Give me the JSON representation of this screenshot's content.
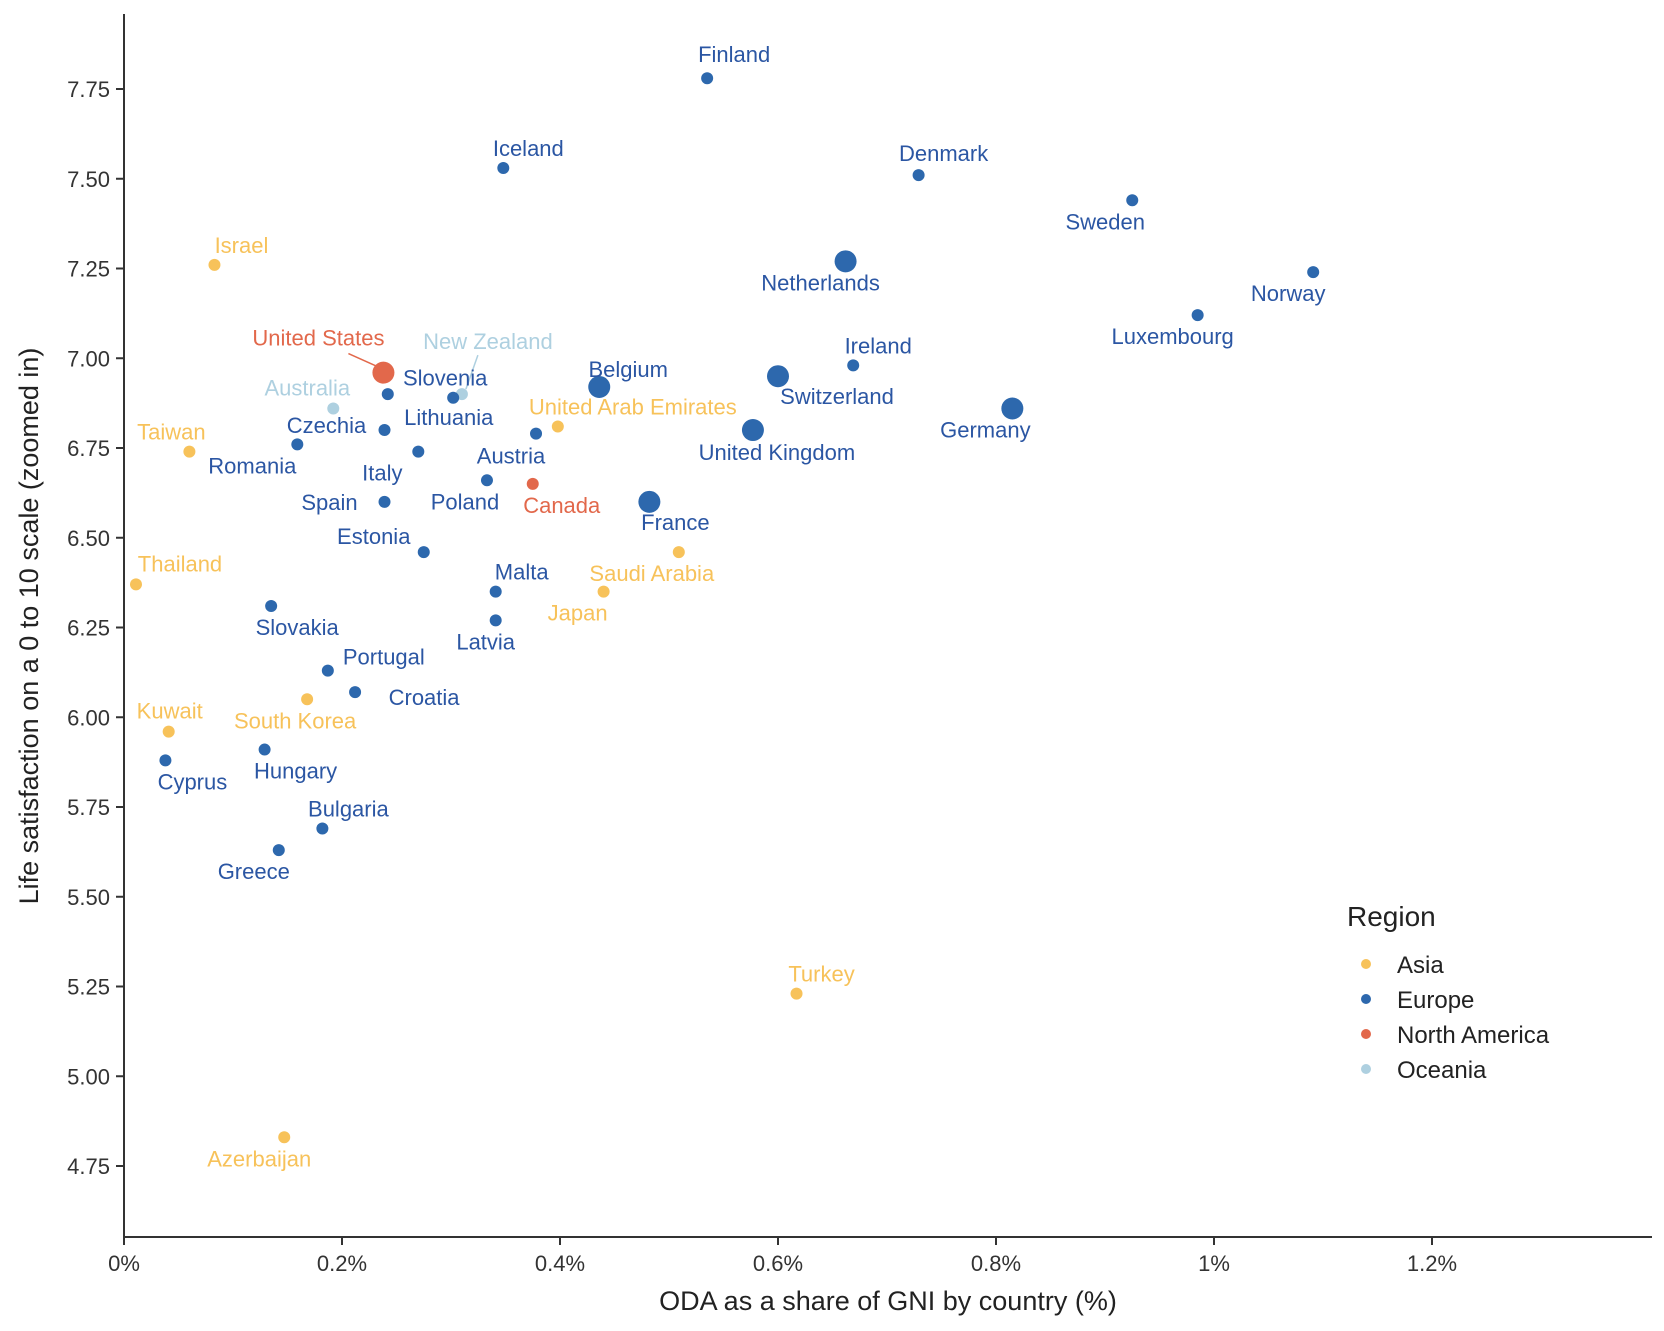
{
  "chart_data": {
    "type": "scatter",
    "xlabel": "ODA as a share of GNI by country (%)",
    "ylabel": "Life satisfaction on a 0 to 10 scale (zoomed in)",
    "xlim": [
      0,
      1.4
    ],
    "ylim": [
      4.6,
      7.92
    ],
    "x_ticks": [
      {
        "value": 0,
        "label": "0%"
      },
      {
        "value": 0.2,
        "label": "0.2%"
      },
      {
        "value": 0.4,
        "label": "0.4%"
      },
      {
        "value": 0.6,
        "label": "0.6%"
      },
      {
        "value": 0.8,
        "label": "0.8%"
      },
      {
        "value": 1.0,
        "label": "1%"
      },
      {
        "value": 1.2,
        "label": "1.2%"
      }
    ],
    "y_ticks": [
      {
        "value": 4.75,
        "label": "4.75"
      },
      {
        "value": 5.0,
        "label": "5.00"
      },
      {
        "value": 5.25,
        "label": "5.25"
      },
      {
        "value": 5.5,
        "label": "5.50"
      },
      {
        "value": 5.75,
        "label": "5.75"
      },
      {
        "value": 6.0,
        "label": "6.00"
      },
      {
        "value": 6.25,
        "label": "6.25"
      },
      {
        "value": 6.5,
        "label": "6.50"
      },
      {
        "value": 6.75,
        "label": "6.75"
      },
      {
        "value": 7.0,
        "label": "7.00"
      },
      {
        "value": 7.25,
        "label": "7.25"
      },
      {
        "value": 7.5,
        "label": "7.50"
      },
      {
        "value": 7.75,
        "label": "7.75"
      }
    ],
    "grid": false,
    "legend": {
      "title": "Region",
      "placement": "bottom-right",
      "entries": [
        {
          "name": "Asia",
          "color": "#f7c25a"
        },
        {
          "name": "Europe",
          "color": "#2d68ad"
        },
        {
          "name": "North America",
          "color": "#e2684b"
        },
        {
          "name": "Oceania",
          "color": "#aed0e0"
        }
      ]
    },
    "region_colors": {
      "Asia": "#f7c25a",
      "Europe": "#2d68ad",
      "North America": "#e2684b",
      "Oceania": "#aed0e0"
    },
    "label_colors": {
      "Asia": "#f7c25a",
      "Europe": "#2b56a3",
      "North America": "#e2684b",
      "Oceania": "#aed0e0"
    },
    "points": [
      {
        "label": "Finland",
        "region": "Europe",
        "x": 0.535,
        "y": 7.78,
        "size": "small"
      },
      {
        "label": "Iceland",
        "region": "Europe",
        "x": 0.348,
        "y": 7.53,
        "size": "small"
      },
      {
        "label": "Denmark",
        "region": "Europe",
        "x": 0.729,
        "y": 7.51,
        "size": "small"
      },
      {
        "label": "Sweden",
        "region": "Europe",
        "x": 0.925,
        "y": 7.44,
        "size": "small"
      },
      {
        "label": "Netherlands",
        "region": "Europe",
        "x": 0.662,
        "y": 7.27,
        "size": "large"
      },
      {
        "label": "Norway",
        "region": "Europe",
        "x": 1.091,
        "y": 7.24,
        "size": "small"
      },
      {
        "label": "Luxembourg",
        "region": "Europe",
        "x": 0.985,
        "y": 7.12,
        "size": "small"
      },
      {
        "label": "Israel",
        "region": "Asia",
        "x": 0.083,
        "y": 7.26,
        "size": "small"
      },
      {
        "label": "United States",
        "region": "North America",
        "x": 0.238,
        "y": 6.96,
        "size": "large"
      },
      {
        "label": "New Zealand",
        "region": "Oceania",
        "x": 0.31,
        "y": 6.9,
        "size": "small"
      },
      {
        "label": "Slovenia",
        "region": "Europe",
        "x": 0.302,
        "y": 6.89,
        "size": "small"
      },
      {
        "label": "Belgium",
        "region": "Europe",
        "x": 0.436,
        "y": 6.92,
        "size": "large"
      },
      {
        "label": "Ireland",
        "region": "Europe",
        "x": 0.669,
        "y": 6.98,
        "size": "small"
      },
      {
        "label": "Switzerland",
        "region": "Europe",
        "x": 0.6,
        "y": 6.95,
        "size": "large"
      },
      {
        "label": "Australia",
        "region": "Oceania",
        "x": 0.192,
        "y": 6.86,
        "size": "small"
      },
      {
        "label": "Lithuania",
        "region": "Europe",
        "x": 0.242,
        "y": 6.9,
        "size": "small"
      },
      {
        "label": "United Arab Emirates",
        "region": "Asia",
        "x": 0.398,
        "y": 6.81,
        "size": "small"
      },
      {
        "label": "Germany",
        "region": "Europe",
        "x": 0.815,
        "y": 6.86,
        "size": "large"
      },
      {
        "label": "Taiwan",
        "region": "Asia",
        "x": 0.06,
        "y": 6.74,
        "size": "small"
      },
      {
        "label": "Czechia",
        "region": "Europe",
        "x": 0.239,
        "y": 6.8,
        "size": "small"
      },
      {
        "label": "Romania",
        "region": "Europe",
        "x": 0.159,
        "y": 6.76,
        "size": "small"
      },
      {
        "label": "Italy",
        "region": "Europe",
        "x": 0.27,
        "y": 6.74,
        "size": "small"
      },
      {
        "label": "Austria",
        "region": "Europe",
        "x": 0.378,
        "y": 6.79,
        "size": "small"
      },
      {
        "label": "United Kingdom",
        "region": "Europe",
        "x": 0.577,
        "y": 6.8,
        "size": "large"
      },
      {
        "label": "Spain",
        "region": "Europe",
        "x": 0.239,
        "y": 6.6,
        "size": "small"
      },
      {
        "label": "Poland",
        "region": "Europe",
        "x": 0.333,
        "y": 6.66,
        "size": "small"
      },
      {
        "label": "Canada",
        "region": "North America",
        "x": 0.375,
        "y": 6.65,
        "size": "small"
      },
      {
        "label": "France",
        "region": "Europe",
        "x": 0.482,
        "y": 6.6,
        "size": "large"
      },
      {
        "label": "Estonia",
        "region": "Europe",
        "x": 0.275,
        "y": 6.46,
        "size": "small"
      },
      {
        "label": "Thailand",
        "region": "Asia",
        "x": 0.011,
        "y": 6.37,
        "size": "small"
      },
      {
        "label": "Saudi Arabia",
        "region": "Asia",
        "x": 0.509,
        "y": 6.46,
        "size": "small"
      },
      {
        "label": "Malta",
        "region": "Europe",
        "x": 0.341,
        "y": 6.35,
        "size": "small"
      },
      {
        "label": "Japan",
        "region": "Asia",
        "x": 0.44,
        "y": 6.35,
        "size": "small"
      },
      {
        "label": "Slovakia",
        "region": "Europe",
        "x": 0.135,
        "y": 6.31,
        "size": "small"
      },
      {
        "label": "Latvia",
        "region": "Europe",
        "x": 0.341,
        "y": 6.27,
        "size": "small"
      },
      {
        "label": "Portugal",
        "region": "Europe",
        "x": 0.187,
        "y": 6.13,
        "size": "small"
      },
      {
        "label": "Croatia",
        "region": "Europe",
        "x": 0.212,
        "y": 6.07,
        "size": "small"
      },
      {
        "label": "South Korea",
        "region": "Asia",
        "x": 0.168,
        "y": 6.05,
        "size": "small"
      },
      {
        "label": "Kuwait",
        "region": "Asia",
        "x": 0.041,
        "y": 5.96,
        "size": "small"
      },
      {
        "label": "Hungary",
        "region": "Europe",
        "x": 0.129,
        "y": 5.91,
        "size": "small"
      },
      {
        "label": "Cyprus",
        "region": "Europe",
        "x": 0.038,
        "y": 5.88,
        "size": "small"
      },
      {
        "label": "Bulgaria",
        "region": "Europe",
        "x": 0.182,
        "y": 5.69,
        "size": "small"
      },
      {
        "label": "Greece",
        "region": "Europe",
        "x": 0.142,
        "y": 5.63,
        "size": "small"
      },
      {
        "label": "Turkey",
        "region": "Asia",
        "x": 0.617,
        "y": 5.23,
        "size": "small"
      },
      {
        "label": "Azerbaijan",
        "region": "Asia",
        "x": 0.147,
        "y": 4.83,
        "size": "small"
      }
    ]
  }
}
